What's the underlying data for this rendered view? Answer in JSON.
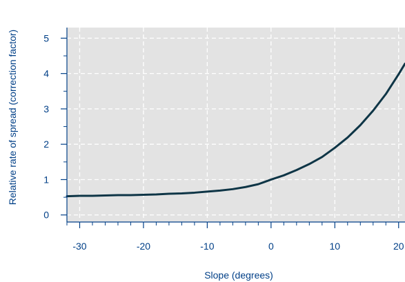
{
  "chart_data": {
    "type": "line",
    "title": "",
    "xlabel": "Slope (degrees)",
    "ylabel": "Relative rate of spread (correction factor)",
    "xlim": [
      -32,
      21
    ],
    "ylim": [
      -0.2,
      5.3
    ],
    "xticks": [
      -30,
      -20,
      -10,
      0,
      10,
      20
    ],
    "xtick_labels": [
      "-30",
      "-20",
      "-10",
      "0",
      "10",
      "20"
    ],
    "yticks": [
      0,
      1,
      2,
      3,
      4,
      5
    ],
    "ytick_labels": [
      "0",
      "1",
      "2",
      "3",
      "4",
      "5"
    ],
    "x_minor_step": 2,
    "grid": true,
    "legend": "none",
    "series": [
      {
        "x": [
          -32,
          -30,
          -28,
          -26,
          -24,
          -22,
          -20,
          -18,
          -16,
          -14,
          -12,
          -10,
          -8,
          -6,
          -4,
          -2,
          0,
          2,
          4,
          6,
          8,
          10,
          12,
          14,
          16,
          18,
          20,
          21
        ],
        "y": [
          0.53,
          0.54,
          0.54,
          0.55,
          0.56,
          0.56,
          0.57,
          0.58,
          0.6,
          0.61,
          0.63,
          0.66,
          0.69,
          0.73,
          0.79,
          0.87,
          1.0,
          1.12,
          1.27,
          1.44,
          1.64,
          1.9,
          2.19,
          2.54,
          2.95,
          3.42,
          3.98,
          4.28
        ]
      }
    ]
  },
  "colors": {
    "axes": "#003f87",
    "panel": "#e3e3e3",
    "grid": "#ffffff",
    "line": "#0e3546"
  }
}
